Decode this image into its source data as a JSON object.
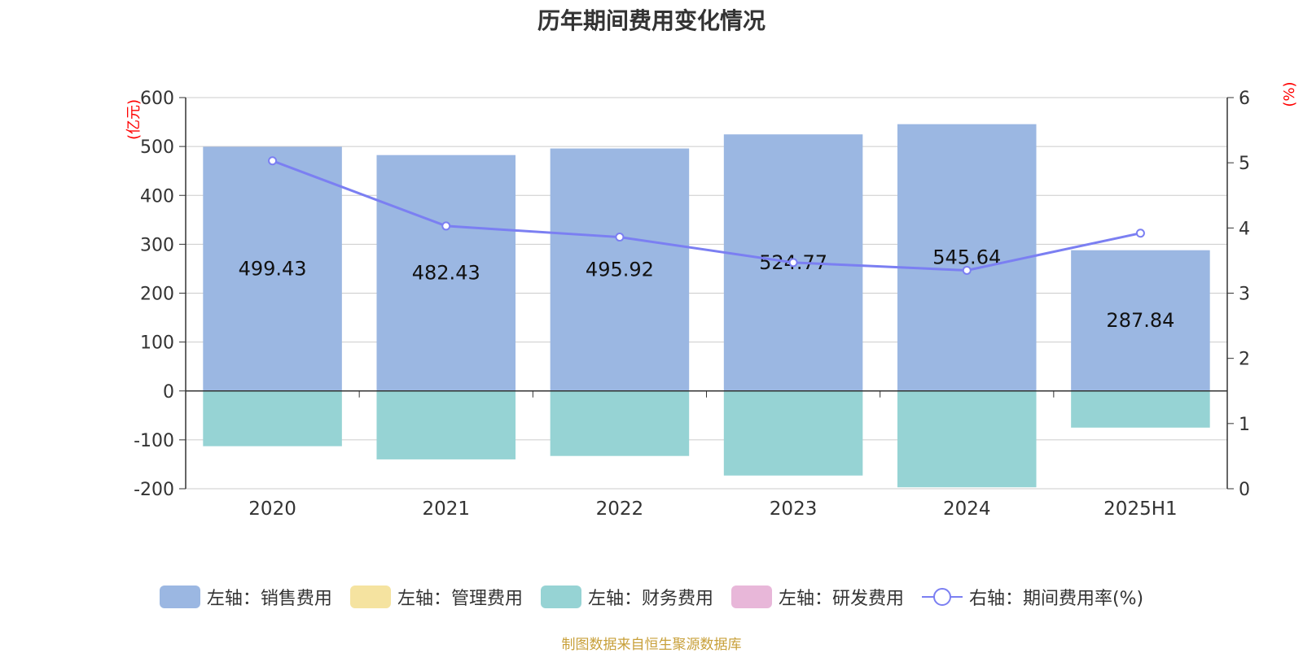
{
  "title": "历年期间费用变化情况",
  "source": "制图数据来自恒生聚源数据库",
  "colors": {
    "sales": "#9bb7e2",
    "admin": "#f5e3a0",
    "finance": "#96d3d4",
    "rnd": "#e8b7d9",
    "rate": "#7b7ff2",
    "unit": "#ff0000"
  },
  "legend": [
    {
      "label": "左轴：销售费用",
      "kind": "bar",
      "color": "#9bb7e2"
    },
    {
      "label": "左轴：管理费用",
      "kind": "bar",
      "color": "#f5e3a0"
    },
    {
      "label": "左轴：财务费用",
      "kind": "bar",
      "color": "#96d3d4"
    },
    {
      "label": "左轴：研发费用",
      "kind": "bar",
      "color": "#e8b7d9"
    },
    {
      "label": "右轴：期间费用率(%)",
      "kind": "line",
      "color": "#7b7ff2"
    }
  ],
  "chart_data": {
    "type": "bar",
    "title": "历年期间费用变化情况",
    "categories": [
      "2020",
      "2021",
      "2022",
      "2023",
      "2024",
      "2025H1"
    ],
    "left_axis": {
      "unit": "(亿元)",
      "ylim": [
        -200,
        600
      ],
      "ticks": [
        -200,
        -100,
        0,
        100,
        200,
        300,
        400,
        500,
        600
      ]
    },
    "right_axis": {
      "unit": "(%)",
      "ylim": [
        0,
        6
      ],
      "ticks": [
        0,
        1,
        2,
        3,
        4,
        5,
        6
      ]
    },
    "grid": true,
    "legend_position": "bottom",
    "series": [
      {
        "name": "左轴：销售费用",
        "axis": "left",
        "type": "bar",
        "color": "#9bb7e2",
        "values": [
          499.43,
          482.43,
          495.92,
          524.77,
          545.64,
          287.84
        ],
        "labels": [
          "499.43",
          "482.43",
          "495.92",
          "524.77",
          "545.64",
          "287.84"
        ]
      },
      {
        "name": "左轴：财务费用",
        "axis": "left",
        "type": "bar",
        "color": "#96d3d4",
        "values": [
          -113,
          -140,
          -133,
          -173,
          -197,
          -75
        ]
      },
      {
        "name": "右轴：期间费用率(%)",
        "axis": "right",
        "type": "line",
        "color": "#7b7ff2",
        "values": [
          5.03,
          4.03,
          3.86,
          3.47,
          3.35,
          3.92
        ]
      }
    ]
  }
}
